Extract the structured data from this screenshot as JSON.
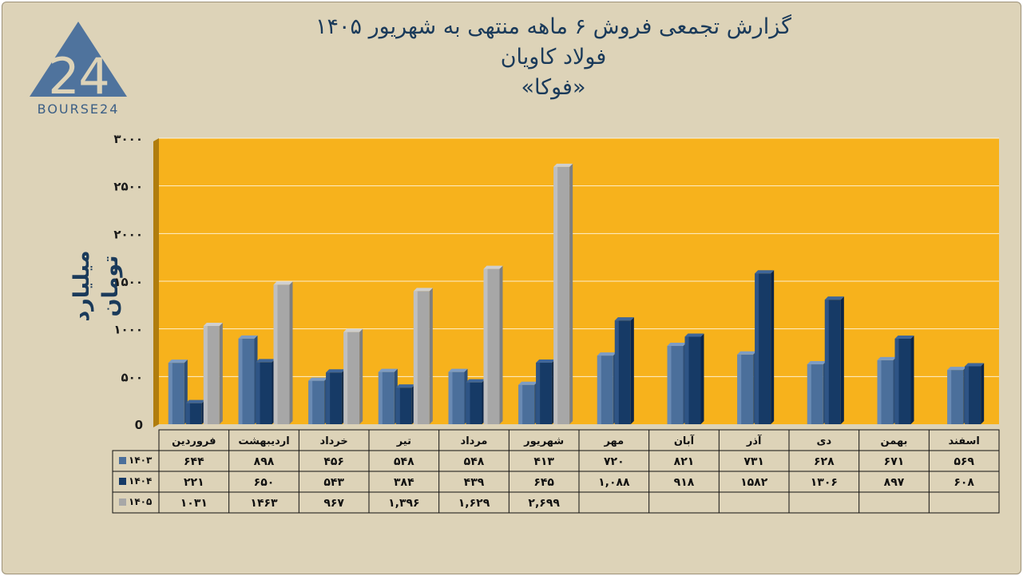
{
  "header": {
    "title_line1": "گزارش تجمعی فروش ۶ ماهه منتهی به شهریور ۱۴۰۵",
    "title_line2": "فولاد کاویان",
    "title_line3": "«فوکا»"
  },
  "logo": {
    "text": "BOURSE24",
    "mark": "24"
  },
  "colors": {
    "background": "#ddd3b8",
    "plot_area": "#f7b21c",
    "series_1403": "#4b6f9b",
    "series_1404": "#163a66",
    "series_1405": "#a7a7a7",
    "title_text": "#1a3a5a"
  },
  "chart_data": {
    "type": "bar",
    "ylabel": "میلیارد تومان",
    "ylim": [
      0,
      3000
    ],
    "yticks": [
      0,
      500,
      1000,
      1500,
      2000,
      2500,
      3000
    ],
    "ytick_labels": [
      "0",
      "۵۰۰",
      "۱۰۰۰",
      "۱۵۰۰",
      "۲۰۰۰",
      "۲۵۰۰",
      "۳۰۰۰"
    ],
    "grid": true,
    "legend": "table-left",
    "categories": [
      "فروردین",
      "اردیبهشت",
      "خرداد",
      "تیر",
      "مرداد",
      "شهریور",
      "مهر",
      "آبان",
      "آذر",
      "دی",
      "بهمن",
      "اسفند"
    ],
    "series": [
      {
        "name": "۱۴۰۳",
        "values": [
          644,
          898,
          456,
          548,
          548,
          413,
          720,
          821,
          731,
          628,
          671,
          569
        ],
        "labels": [
          "۶۴۴",
          "۸۹۸",
          "۴۵۶",
          "۵۴۸",
          "۵۴۸",
          "۴۱۳",
          "۷۲۰",
          "۸۲۱",
          "۷۳۱",
          "۶۲۸",
          "۶۷۱",
          "۵۶۹"
        ]
      },
      {
        "name": "۱۴۰۴",
        "values": [
          221,
          650,
          543,
          384,
          439,
          645,
          1088,
          918,
          1582,
          1306,
          897,
          608
        ],
        "labels": [
          "۲۲۱",
          "۶۵۰",
          "۵۴۳",
          "۳۸۴",
          "۴۳۹",
          "۶۴۵",
          "۱,۰۸۸",
          "۹۱۸",
          "۱۵۸۲",
          "۱۳۰۶",
          "۸۹۷",
          "۶۰۸"
        ]
      },
      {
        "name": "۱۴۰۵",
        "values": [
          1031,
          1463,
          967,
          1396,
          1629,
          2699,
          null,
          null,
          null,
          null,
          null,
          null
        ],
        "labels": [
          "۱۰۳۱",
          "۱۴۶۳",
          "۹۶۷",
          "۱,۳۹۶",
          "۱,۶۲۹",
          "۲,۶۹۹",
          "",
          "",
          "",
          "",
          "",
          ""
        ]
      }
    ]
  }
}
